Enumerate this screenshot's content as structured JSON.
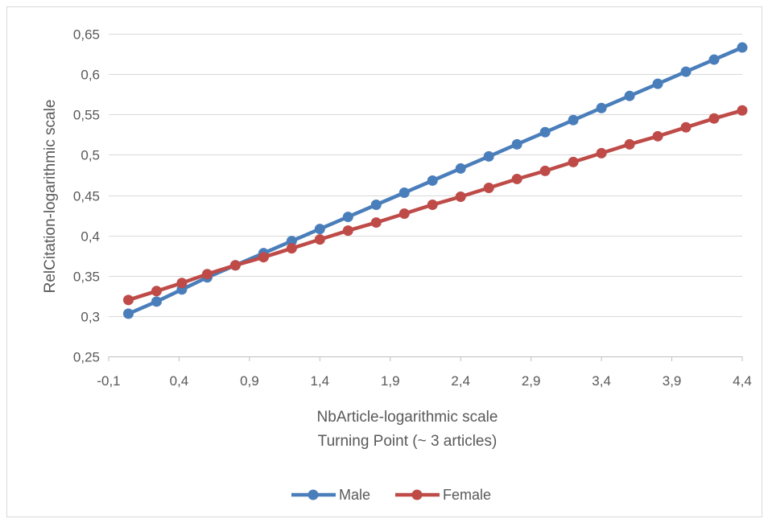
{
  "chart_data": {
    "type": "line",
    "xlabel": "NbArticle-logarithmic scale",
    "xlabel2": "Turning Point (~ 3 articles)",
    "ylabel": "RelCitation-logarithmic scale",
    "xlim": [
      -0.1,
      4.4
    ],
    "ylim": [
      0.25,
      0.65
    ],
    "xticks": [
      "-0,1",
      "0,4",
      "0,9",
      "1,4",
      "1,9",
      "2,4",
      "2,9",
      "3,4",
      "3,9",
      "4,4"
    ],
    "xtick_values": [
      -0.1,
      0.4,
      0.9,
      1.4,
      1.9,
      2.4,
      2.9,
      3.4,
      3.9,
      4.4
    ],
    "yticks": [
      "0,25",
      "0,3",
      "0,35",
      "0,4",
      "0,45",
      "0,5",
      "0,55",
      "0,6",
      "0,65"
    ],
    "ytick_values": [
      0.25,
      0.3,
      0.35,
      0.4,
      0.45,
      0.5,
      0.55,
      0.6,
      0.65
    ],
    "grid": true,
    "legend_position": "bottom",
    "x": [
      0.04,
      0.24,
      0.42,
      0.6,
      0.8,
      1.0,
      1.2,
      1.4,
      1.6,
      1.8,
      2.0,
      2.2,
      2.4,
      2.6,
      2.8,
      3.0,
      3.2,
      3.4,
      3.6,
      3.8,
      4.0,
      4.2,
      4.4
    ],
    "series": [
      {
        "name": "Male",
        "color": "#4a7ebb",
        "values": [
          0.303,
          0.318,
          0.333,
          0.348,
          0.363,
          0.378,
          0.393,
          0.408,
          0.423,
          0.438,
          0.453,
          0.468,
          0.483,
          0.498,
          0.513,
          0.528,
          0.543,
          0.558,
          0.573,
          0.588,
          0.603,
          0.618,
          0.633
        ]
      },
      {
        "name": "Female",
        "color": "#be4b48",
        "values": [
          0.32,
          0.331,
          0.341,
          0.352,
          0.363,
          0.373,
          0.384,
          0.395,
          0.406,
          0.416,
          0.427,
          0.438,
          0.448,
          0.459,
          0.47,
          0.48,
          0.491,
          0.502,
          0.513,
          0.523,
          0.534,
          0.545,
          0.555
        ]
      }
    ]
  }
}
